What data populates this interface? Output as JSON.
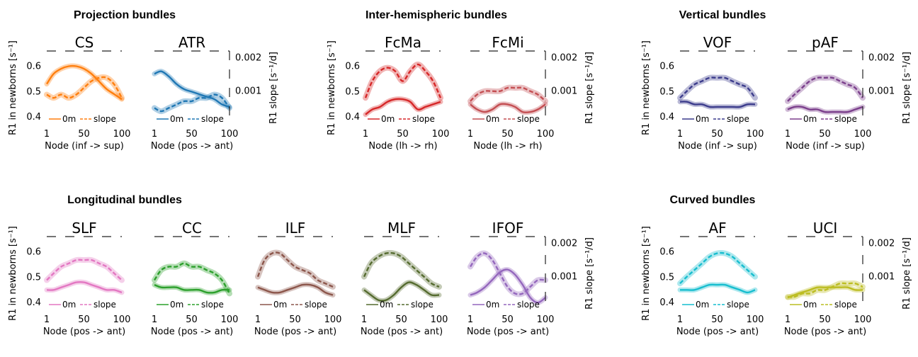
{
  "groups": [
    {
      "title": "Projection bundles",
      "x_label_centers": []
    },
    {
      "title": "Inter-hemispheric bundles"
    },
    {
      "title": "Vertical bundles"
    },
    {
      "title": "Longitudinal bundles"
    },
    {
      "title": "Curved bundles"
    }
  ],
  "axis_labels": {
    "left": "R1 in newborns [s⁻¹]",
    "right": "R1 slope [s⁻¹/d]"
  },
  "legend": {
    "solid_label": "0m",
    "dashed_label": "slope"
  },
  "left_ticks": [
    "0.6",
    "0.5",
    "0.4"
  ],
  "right_ticks": [
    "0.002",
    "0.001"
  ],
  "chart_data": [
    {
      "type": "line",
      "title": "CS",
      "color": "#ff7f0e",
      "xlabel": "Node (inf -> sup)",
      "xticks": [
        "1",
        "50",
        "100"
      ],
      "xlim": [
        1,
        100
      ],
      "ylim_left": [
        0.37,
        0.66
      ],
      "ylim_right": [
        0.0,
        0.0022
      ],
      "series": [
        {
          "name": "0m",
          "axis": "left",
          "x": [
            1,
            10,
            20,
            30,
            40,
            50,
            60,
            70,
            80,
            90,
            100
          ],
          "values": [
            0.53,
            0.57,
            0.59,
            0.6,
            0.6,
            0.59,
            0.57,
            0.54,
            0.51,
            0.49,
            0.47
          ]
        },
        {
          "name": "slope",
          "axis": "right",
          "x": [
            1,
            10,
            20,
            30,
            40,
            50,
            60,
            70,
            80,
            90,
            100
          ],
          "values": [
            0.0009,
            0.0008,
            0.0009,
            0.0008,
            0.0009,
            0.0011,
            0.0013,
            0.0014,
            0.0014,
            0.0012,
            0.0008
          ]
        }
      ]
    },
    {
      "type": "line",
      "title": "ATR",
      "color": "#1f77b4",
      "xlabel": "Node (pos -> ant)",
      "xticks": [
        "1",
        "50",
        "100"
      ],
      "xlim": [
        1,
        100
      ],
      "ylim_left": [
        0.37,
        0.66
      ],
      "ylim_right": [
        0.0,
        0.0022
      ],
      "series": [
        {
          "name": "0m",
          "axis": "left",
          "x": [
            1,
            10,
            20,
            30,
            40,
            50,
            60,
            70,
            80,
            90,
            100
          ],
          "values": [
            0.57,
            0.58,
            0.56,
            0.53,
            0.51,
            0.5,
            0.49,
            0.48,
            0.47,
            0.45,
            0.44
          ]
        },
        {
          "name": "slope",
          "axis": "right",
          "x": [
            1,
            10,
            20,
            30,
            40,
            50,
            60,
            70,
            80,
            90,
            100
          ],
          "values": [
            0.0005,
            0.0004,
            0.0005,
            0.0006,
            0.0007,
            0.0007,
            0.0008,
            0.0008,
            0.0009,
            0.0008,
            0.0005
          ]
        }
      ]
    },
    {
      "type": "line",
      "title": "FcMa",
      "color": "#d62728",
      "xlabel": "Node (lh -> rh)",
      "xticks": [
        "1",
        "50",
        "100"
      ],
      "xlim": [
        1,
        100
      ],
      "ylim_left": [
        0.37,
        0.66
      ],
      "ylim_right": [
        0.0,
        0.0022
      ],
      "series": [
        {
          "name": "0m",
          "axis": "left",
          "x": [
            1,
            10,
            20,
            30,
            40,
            50,
            60,
            70,
            80,
            90,
            100
          ],
          "values": [
            0.41,
            0.43,
            0.44,
            0.46,
            0.47,
            0.47,
            0.46,
            0.43,
            0.44,
            0.45,
            0.46
          ]
        },
        {
          "name": "slope",
          "axis": "right",
          "x": [
            1,
            10,
            20,
            30,
            40,
            50,
            60,
            70,
            80,
            90,
            100
          ],
          "values": [
            0.0008,
            0.0013,
            0.0016,
            0.0017,
            0.0016,
            0.0013,
            0.0016,
            0.0018,
            0.0016,
            0.0013,
            0.0008
          ]
        }
      ]
    },
    {
      "type": "line",
      "title": "FcMi",
      "color": "#c44e52",
      "xlabel": "Node (lh -> rh)",
      "xticks": [
        "1",
        "50",
        "100"
      ],
      "xlim": [
        1,
        100
      ],
      "ylim_left": [
        0.37,
        0.66
      ],
      "ylim_right": [
        0.0,
        0.0022
      ],
      "series": [
        {
          "name": "0m",
          "axis": "left",
          "x": [
            1,
            10,
            20,
            30,
            40,
            50,
            60,
            70,
            80,
            90,
            100
          ],
          "values": [
            0.45,
            0.43,
            0.42,
            0.43,
            0.45,
            0.45,
            0.44,
            0.42,
            0.42,
            0.43,
            0.45
          ]
        },
        {
          "name": "slope",
          "axis": "right",
          "x": [
            1,
            10,
            20,
            30,
            40,
            50,
            60,
            70,
            80,
            90,
            100
          ],
          "values": [
            0.0007,
            0.0009,
            0.001,
            0.001,
            0.001,
            0.0011,
            0.0011,
            0.0011,
            0.001,
            0.0009,
            0.0007
          ]
        }
      ]
    },
    {
      "type": "line",
      "title": "VOF",
      "color": "#3c3c8c",
      "xlabel": "Node (inf -> sup)",
      "xticks": [
        "1",
        "50",
        "100"
      ],
      "xlim": [
        1,
        100
      ],
      "ylim_left": [
        0.37,
        0.66
      ],
      "ylim_right": [
        0.0,
        0.0022
      ],
      "series": [
        {
          "name": "0m",
          "axis": "left",
          "x": [
            1,
            10,
            20,
            30,
            40,
            50,
            60,
            70,
            80,
            90,
            100
          ],
          "values": [
            0.46,
            0.46,
            0.45,
            0.45,
            0.44,
            0.44,
            0.44,
            0.44,
            0.44,
            0.45,
            0.45
          ]
        },
        {
          "name": "slope",
          "axis": "right",
          "x": [
            1,
            10,
            20,
            30,
            40,
            50,
            60,
            70,
            80,
            90,
            100
          ],
          "values": [
            0.0008,
            0.001,
            0.0012,
            0.0013,
            0.0014,
            0.0014,
            0.0014,
            0.0013,
            0.0012,
            0.0011,
            0.0008
          ]
        }
      ]
    },
    {
      "type": "line",
      "title": "pAF",
      "color": "#7b3f8c",
      "xlabel": "Node (inf -> sup)",
      "xticks": [
        "1",
        "50",
        "100"
      ],
      "xlim": [
        1,
        100
      ],
      "ylim_left": [
        0.37,
        0.66
      ],
      "ylim_right": [
        0.0,
        0.0022
      ],
      "series": [
        {
          "name": "0m",
          "axis": "left",
          "x": [
            1,
            10,
            20,
            30,
            40,
            50,
            60,
            70,
            80,
            90,
            100
          ],
          "values": [
            0.43,
            0.44,
            0.44,
            0.43,
            0.43,
            0.42,
            0.42,
            0.42,
            0.42,
            0.43,
            0.44
          ]
        },
        {
          "name": "slope",
          "axis": "right",
          "x": [
            1,
            10,
            20,
            30,
            40,
            50,
            60,
            70,
            80,
            90,
            100
          ],
          "values": [
            0.0007,
            0.0009,
            0.0011,
            0.0013,
            0.0014,
            0.0014,
            0.0014,
            0.0013,
            0.0012,
            0.0011,
            0.0008
          ]
        }
      ]
    },
    {
      "type": "line",
      "title": "SLF",
      "color": "#e377c2",
      "xlabel": "Node (pos -> ant)",
      "xticks": [
        "1",
        "50",
        "100"
      ],
      "xlim": [
        1,
        100
      ],
      "ylim_left": [
        0.37,
        0.66
      ],
      "ylim_right": [
        0.0,
        0.0022
      ],
      "series": [
        {
          "name": "0m",
          "axis": "left",
          "x": [
            1,
            10,
            20,
            30,
            40,
            50,
            60,
            70,
            80,
            90,
            100
          ],
          "values": [
            0.45,
            0.45,
            0.46,
            0.47,
            0.48,
            0.48,
            0.47,
            0.46,
            0.45,
            0.45,
            0.44
          ]
        },
        {
          "name": "slope",
          "axis": "right",
          "x": [
            1,
            10,
            20,
            30,
            40,
            50,
            60,
            70,
            80,
            90,
            100
          ],
          "values": [
            0.0009,
            0.0011,
            0.0013,
            0.0014,
            0.0015,
            0.0015,
            0.0015,
            0.0014,
            0.0013,
            0.0011,
            0.0009
          ]
        }
      ]
    },
    {
      "type": "line",
      "title": "CC",
      "color": "#2ca02c",
      "xlabel": "Node (pos -> ant)",
      "xticks": [
        "1",
        "50",
        "100"
      ],
      "xlim": [
        1,
        100
      ],
      "ylim_left": [
        0.37,
        0.66
      ],
      "ylim_right": [
        0.0,
        0.0022
      ],
      "series": [
        {
          "name": "0m",
          "axis": "left",
          "x": [
            1,
            10,
            20,
            30,
            40,
            50,
            60,
            70,
            80,
            90,
            100
          ],
          "values": [
            0.47,
            0.46,
            0.46,
            0.46,
            0.45,
            0.45,
            0.45,
            0.44,
            0.44,
            0.45,
            0.45
          ]
        },
        {
          "name": "slope",
          "axis": "right",
          "x": [
            1,
            10,
            20,
            30,
            40,
            50,
            60,
            70,
            80,
            90,
            100
          ],
          "values": [
            0.0009,
            0.0012,
            0.0013,
            0.0013,
            0.0014,
            0.0013,
            0.0013,
            0.0012,
            0.0011,
            0.0009,
            0.0005
          ]
        }
      ]
    },
    {
      "type": "line",
      "title": "ILF",
      "color": "#8c564b",
      "xlabel": "Node (pos -> ant)",
      "xticks": [
        "1",
        "50",
        "100"
      ],
      "xlim": [
        1,
        100
      ],
      "ylim_left": [
        0.37,
        0.66
      ],
      "ylim_right": [
        0.0,
        0.0022
      ],
      "series": [
        {
          "name": "0m",
          "axis": "left",
          "x": [
            1,
            10,
            20,
            30,
            40,
            50,
            60,
            70,
            80,
            90,
            100
          ],
          "values": [
            0.46,
            0.45,
            0.44,
            0.44,
            0.45,
            0.46,
            0.47,
            0.47,
            0.46,
            0.44,
            0.43
          ]
        },
        {
          "name": "slope",
          "axis": "right",
          "x": [
            1,
            10,
            20,
            30,
            40,
            50,
            60,
            70,
            80,
            90,
            100
          ],
          "values": [
            0.001,
            0.0015,
            0.0017,
            0.0017,
            0.0015,
            0.0013,
            0.0012,
            0.0011,
            0.0009,
            0.0008,
            0.0007
          ]
        }
      ]
    },
    {
      "type": "line",
      "title": "MLF",
      "color": "#556b2f",
      "xlabel": "Node (pos -> ant)",
      "xticks": [
        "1",
        "50",
        "100"
      ],
      "xlim": [
        1,
        100
      ],
      "ylim_left": [
        0.37,
        0.66
      ],
      "ylim_right": [
        0.0,
        0.0022
      ],
      "series": [
        {
          "name": "0m",
          "axis": "left",
          "x": [
            1,
            10,
            20,
            30,
            40,
            50,
            60,
            70,
            80,
            90,
            100
          ],
          "values": [
            0.45,
            0.43,
            0.41,
            0.41,
            0.43,
            0.46,
            0.48,
            0.47,
            0.45,
            0.43,
            0.43
          ]
        },
        {
          "name": "slope",
          "axis": "right",
          "x": [
            1,
            10,
            20,
            30,
            40,
            50,
            60,
            70,
            80,
            90,
            100
          ],
          "values": [
            0.001,
            0.0014,
            0.0016,
            0.0017,
            0.0017,
            0.0016,
            0.0014,
            0.0012,
            0.001,
            0.0008,
            0.0007
          ]
        }
      ]
    },
    {
      "type": "line",
      "title": "IFOF",
      "color": "#9467bd",
      "xlabel": "Node (pos -> ant)",
      "xticks": [
        "1",
        "50",
        "100"
      ],
      "xlim": [
        1,
        100
      ],
      "ylim_left": [
        0.37,
        0.66
      ],
      "ylim_right": [
        0.0,
        0.0022
      ],
      "series": [
        {
          "name": "0m",
          "axis": "left",
          "x": [
            1,
            10,
            20,
            30,
            40,
            50,
            60,
            70,
            80,
            90,
            100
          ],
          "values": [
            0.43,
            0.44,
            0.46,
            0.49,
            0.52,
            0.53,
            0.51,
            0.47,
            0.42,
            0.4,
            0.42
          ]
        },
        {
          "name": "slope",
          "axis": "right",
          "x": [
            1,
            10,
            20,
            30,
            40,
            50,
            60,
            70,
            80,
            90,
            100
          ],
          "values": [
            0.0013,
            0.0016,
            0.0017,
            0.0015,
            0.0011,
            0.0007,
            0.0005,
            0.0005,
            0.0007,
            0.0009,
            0.0009
          ]
        }
      ]
    },
    {
      "type": "line",
      "title": "AF",
      "color": "#17becf",
      "xlabel": "Node (pos -> ant)",
      "xticks": [
        "1",
        "50",
        "100"
      ],
      "xlim": [
        1,
        100
      ],
      "ylim_left": [
        0.37,
        0.66
      ],
      "ylim_right": [
        0.0,
        0.0022
      ],
      "series": [
        {
          "name": "0m",
          "axis": "left",
          "x": [
            1,
            10,
            20,
            30,
            40,
            50,
            60,
            70,
            80,
            90,
            100
          ],
          "values": [
            0.45,
            0.45,
            0.45,
            0.46,
            0.47,
            0.47,
            0.47,
            0.46,
            0.45,
            0.44,
            0.45
          ]
        },
        {
          "name": "slope",
          "axis": "right",
          "x": [
            1,
            10,
            20,
            30,
            40,
            50,
            60,
            70,
            80,
            90,
            100
          ],
          "values": [
            0.0008,
            0.001,
            0.0012,
            0.0014,
            0.0016,
            0.0017,
            0.0017,
            0.0016,
            0.0014,
            0.0012,
            0.001
          ]
        }
      ]
    },
    {
      "type": "line",
      "title": "UCI",
      "color": "#bcbd22",
      "xlabel": "Node (pos -> ant)",
      "xticks": [
        "1",
        "50",
        "100"
      ],
      "xlim": [
        1,
        100
      ],
      "ylim_left": [
        0.37,
        0.66
      ],
      "ylim_right": [
        0.0,
        0.0022
      ],
      "series": [
        {
          "name": "0m",
          "axis": "left",
          "x": [
            1,
            10,
            20,
            30,
            40,
            50,
            60,
            70,
            80,
            90,
            100
          ],
          "values": [
            0.42,
            0.43,
            0.44,
            0.45,
            0.46,
            0.46,
            0.46,
            0.46,
            0.46,
            0.45,
            0.45
          ]
        },
        {
          "name": "slope",
          "axis": "right",
          "x": [
            1,
            10,
            20,
            30,
            40,
            50,
            60,
            70,
            80,
            90,
            100
          ],
          "values": [
            0.0004,
            0.0004,
            0.0005,
            0.0005,
            0.0006,
            0.0006,
            0.0007,
            0.0008,
            0.0008,
            0.0008,
            0.0007
          ]
        }
      ]
    }
  ]
}
